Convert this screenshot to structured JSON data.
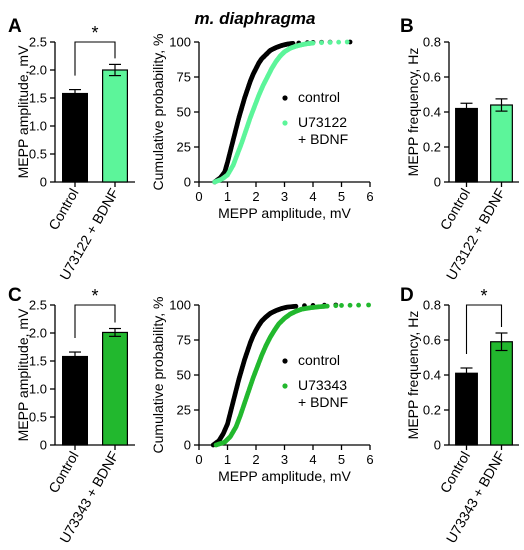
{
  "figure_title": "m. diaphragma",
  "colors": {
    "control": "#000000",
    "u73122": "#5cf59a",
    "u73343": "#22b82e"
  },
  "chart_data": [
    {
      "panel": "A",
      "type": "bar",
      "categories": [
        "Control",
        "U73122 + BDNF"
      ],
      "values": [
        1.58,
        2.0
      ],
      "errors": [
        0.07,
        0.1
      ],
      "ylabel": "MEPP amplitude, mV",
      "ylim": [
        0,
        2.5
      ],
      "yticks": [
        "0",
        "0.5",
        "1.0",
        "1.5",
        "2.0",
        "2.5"
      ],
      "significance": "*"
    },
    {
      "panel": "",
      "type": "scatter",
      "xlabel": "MEPP amplitude, mV",
      "ylabel": "Cumulative probability, %",
      "xlim": [
        0,
        6
      ],
      "ylim": [
        0,
        100
      ],
      "xticks": [
        "0",
        "1",
        "2",
        "3",
        "4",
        "5",
        "6"
      ],
      "yticks": [
        "0",
        "25",
        "50",
        "75",
        "100"
      ],
      "legend_position": "right",
      "series": [
        {
          "name": "control",
          "color": "control",
          "x": [
            0.55,
            0.75,
            0.9,
            1.0,
            1.1,
            1.2,
            1.3,
            1.4,
            1.5,
            1.6,
            1.7,
            1.8,
            1.9,
            2.0,
            2.1,
            2.2,
            2.35,
            2.5,
            2.7,
            2.9,
            3.1,
            3.3,
            3.5,
            3.8,
            4.0,
            4.3,
            4.6,
            5.3
          ],
          "y": [
            0,
            3,
            7,
            14,
            22,
            30,
            38,
            46,
            53,
            60,
            66,
            72,
            77,
            81,
            85,
            88,
            91,
            94,
            96,
            97.5,
            98.5,
            99,
            99.3,
            99.5,
            99.7,
            99.8,
            99.9,
            100
          ]
        },
        {
          "name": "U73122\n+ BDNF",
          "color": "u73122",
          "x": [
            0.55,
            0.8,
            1.0,
            1.2,
            1.35,
            1.5,
            1.65,
            1.8,
            1.95,
            2.1,
            2.25,
            2.4,
            2.55,
            2.7,
            2.85,
            3.0,
            3.2,
            3.4,
            3.6,
            3.8,
            4.0,
            4.3,
            4.6,
            4.9,
            5.2
          ],
          "y": [
            0,
            2,
            5,
            12,
            20,
            28,
            37,
            46,
            54,
            62,
            69,
            75,
            81,
            86,
            90,
            93,
            95.5,
            97,
            98,
            98.8,
            99.2,
            99.5,
            99.7,
            99.9,
            100
          ]
        }
      ]
    },
    {
      "panel": "B",
      "type": "bar",
      "categories": [
        "Control",
        "U73122 + BDNF"
      ],
      "values": [
        0.42,
        0.44
      ],
      "errors": [
        0.03,
        0.035
      ],
      "ylabel": "MEPP frequency, Hz",
      "ylim": [
        0,
        0.8
      ],
      "yticks": [
        "0",
        "0.2",
        "0.4",
        "0.6",
        "0.8"
      ],
      "significance": ""
    },
    {
      "panel": "C",
      "type": "bar",
      "categories": [
        "Control",
        "U73343 + BDNF"
      ],
      "values": [
        1.58,
        2.01
      ],
      "errors": [
        0.08,
        0.07
      ],
      "ylabel": "MEPP amplitude, mV",
      "ylim": [
        0,
        2.5
      ],
      "yticks": [
        "0",
        "0.5",
        "1.0",
        "1.5",
        "2.0",
        "2.5"
      ],
      "significance": "*"
    },
    {
      "panel": "",
      "type": "scatter",
      "xlabel": "MEPP amplitude, mV",
      "ylabel": "Cumulative probability, %",
      "xlim": [
        0,
        6
      ],
      "ylim": [
        0,
        100
      ],
      "xticks": [
        "0",
        "1",
        "2",
        "3",
        "4",
        "5",
        "6"
      ],
      "yticks": [
        "0",
        "25",
        "50",
        "75",
        "100"
      ],
      "legend_position": "right",
      "series": [
        {
          "name": "control",
          "color": "control",
          "x": [
            0.5,
            0.7,
            0.85,
            1.0,
            1.1,
            1.2,
            1.3,
            1.4,
            1.5,
            1.6,
            1.7,
            1.8,
            1.9,
            2.0,
            2.1,
            2.2,
            2.35,
            2.5,
            2.7,
            2.9,
            3.1,
            3.4,
            3.7,
            4.0,
            4.4,
            4.8
          ],
          "y": [
            0,
            3,
            8,
            15,
            23,
            31,
            39,
            47,
            54,
            61,
            67,
            73,
            78,
            82,
            85.5,
            88.5,
            91.5,
            94,
            96,
            97.5,
            98.5,
            99.1,
            99.5,
            99.7,
            99.9,
            100
          ]
        },
        {
          "name": "U73343\n+ BDNF",
          "color": "u73343",
          "x": [
            0.6,
            0.9,
            1.1,
            1.3,
            1.45,
            1.6,
            1.75,
            1.9,
            2.05,
            2.2,
            2.35,
            2.5,
            2.65,
            2.8,
            3.0,
            3.2,
            3.4,
            3.6,
            3.9,
            4.2,
            4.5,
            4.8,
            5.0,
            5.3,
            5.6,
            5.95
          ],
          "y": [
            0,
            2,
            6,
            13,
            21,
            30,
            39,
            48,
            56,
            64,
            71,
            77,
            82,
            86.5,
            90.5,
            93.5,
            95.5,
            97,
            98,
            98.7,
            99.2,
            99.5,
            99.7,
            99.8,
            99.9,
            100
          ]
        }
      ]
    },
    {
      "panel": "D",
      "type": "bar",
      "categories": [
        "Control",
        "U73343 + BDNF"
      ],
      "values": [
        0.41,
        0.59
      ],
      "errors": [
        0.03,
        0.05
      ],
      "ylabel": "MEPP frequency, Hz",
      "ylim": [
        0,
        0.8
      ],
      "yticks": [
        "0",
        "0.2",
        "0.4",
        "0.6",
        "0.8"
      ],
      "significance": "*"
    }
  ]
}
